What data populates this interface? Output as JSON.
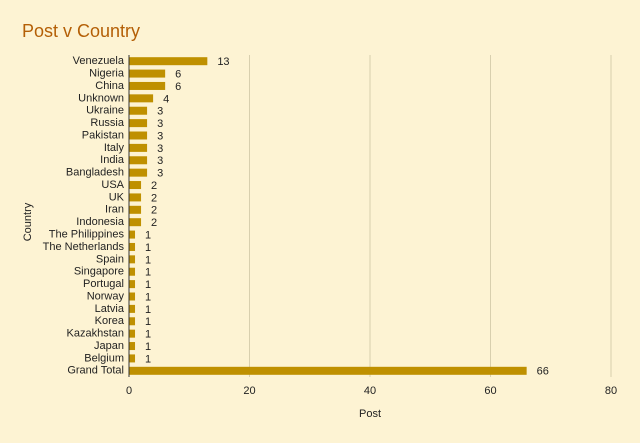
{
  "chart_data": {
    "type": "bar",
    "title": "Post v Country",
    "x_label": "Post",
    "y_label": "Country",
    "categories": [
      "Venezuela",
      "Nigeria",
      "China",
      "Unknown",
      "Ukraine",
      "Russia",
      "Pakistan",
      "Italy",
      "India",
      "Bangladesh",
      "USA",
      "UK",
      "Iran",
      "Indonesia",
      "The Philippines",
      "The Netherlands",
      "Spain",
      "Singapore",
      "Portugal",
      "Norway",
      "Latvia",
      "Korea",
      "Kazakhstan",
      "Japan",
      "Belgium",
      "Grand Total"
    ],
    "values": [
      13,
      6,
      6,
      4,
      3,
      3,
      3,
      3,
      3,
      3,
      2,
      2,
      2,
      2,
      1,
      1,
      1,
      1,
      1,
      1,
      1,
      1,
      1,
      1,
      1,
      66
    ],
    "color": "#bf9000",
    "xlim": [
      0,
      80
    ],
    "xticks": [
      0,
      20,
      40,
      60,
      80
    ],
    "grid": true
  }
}
